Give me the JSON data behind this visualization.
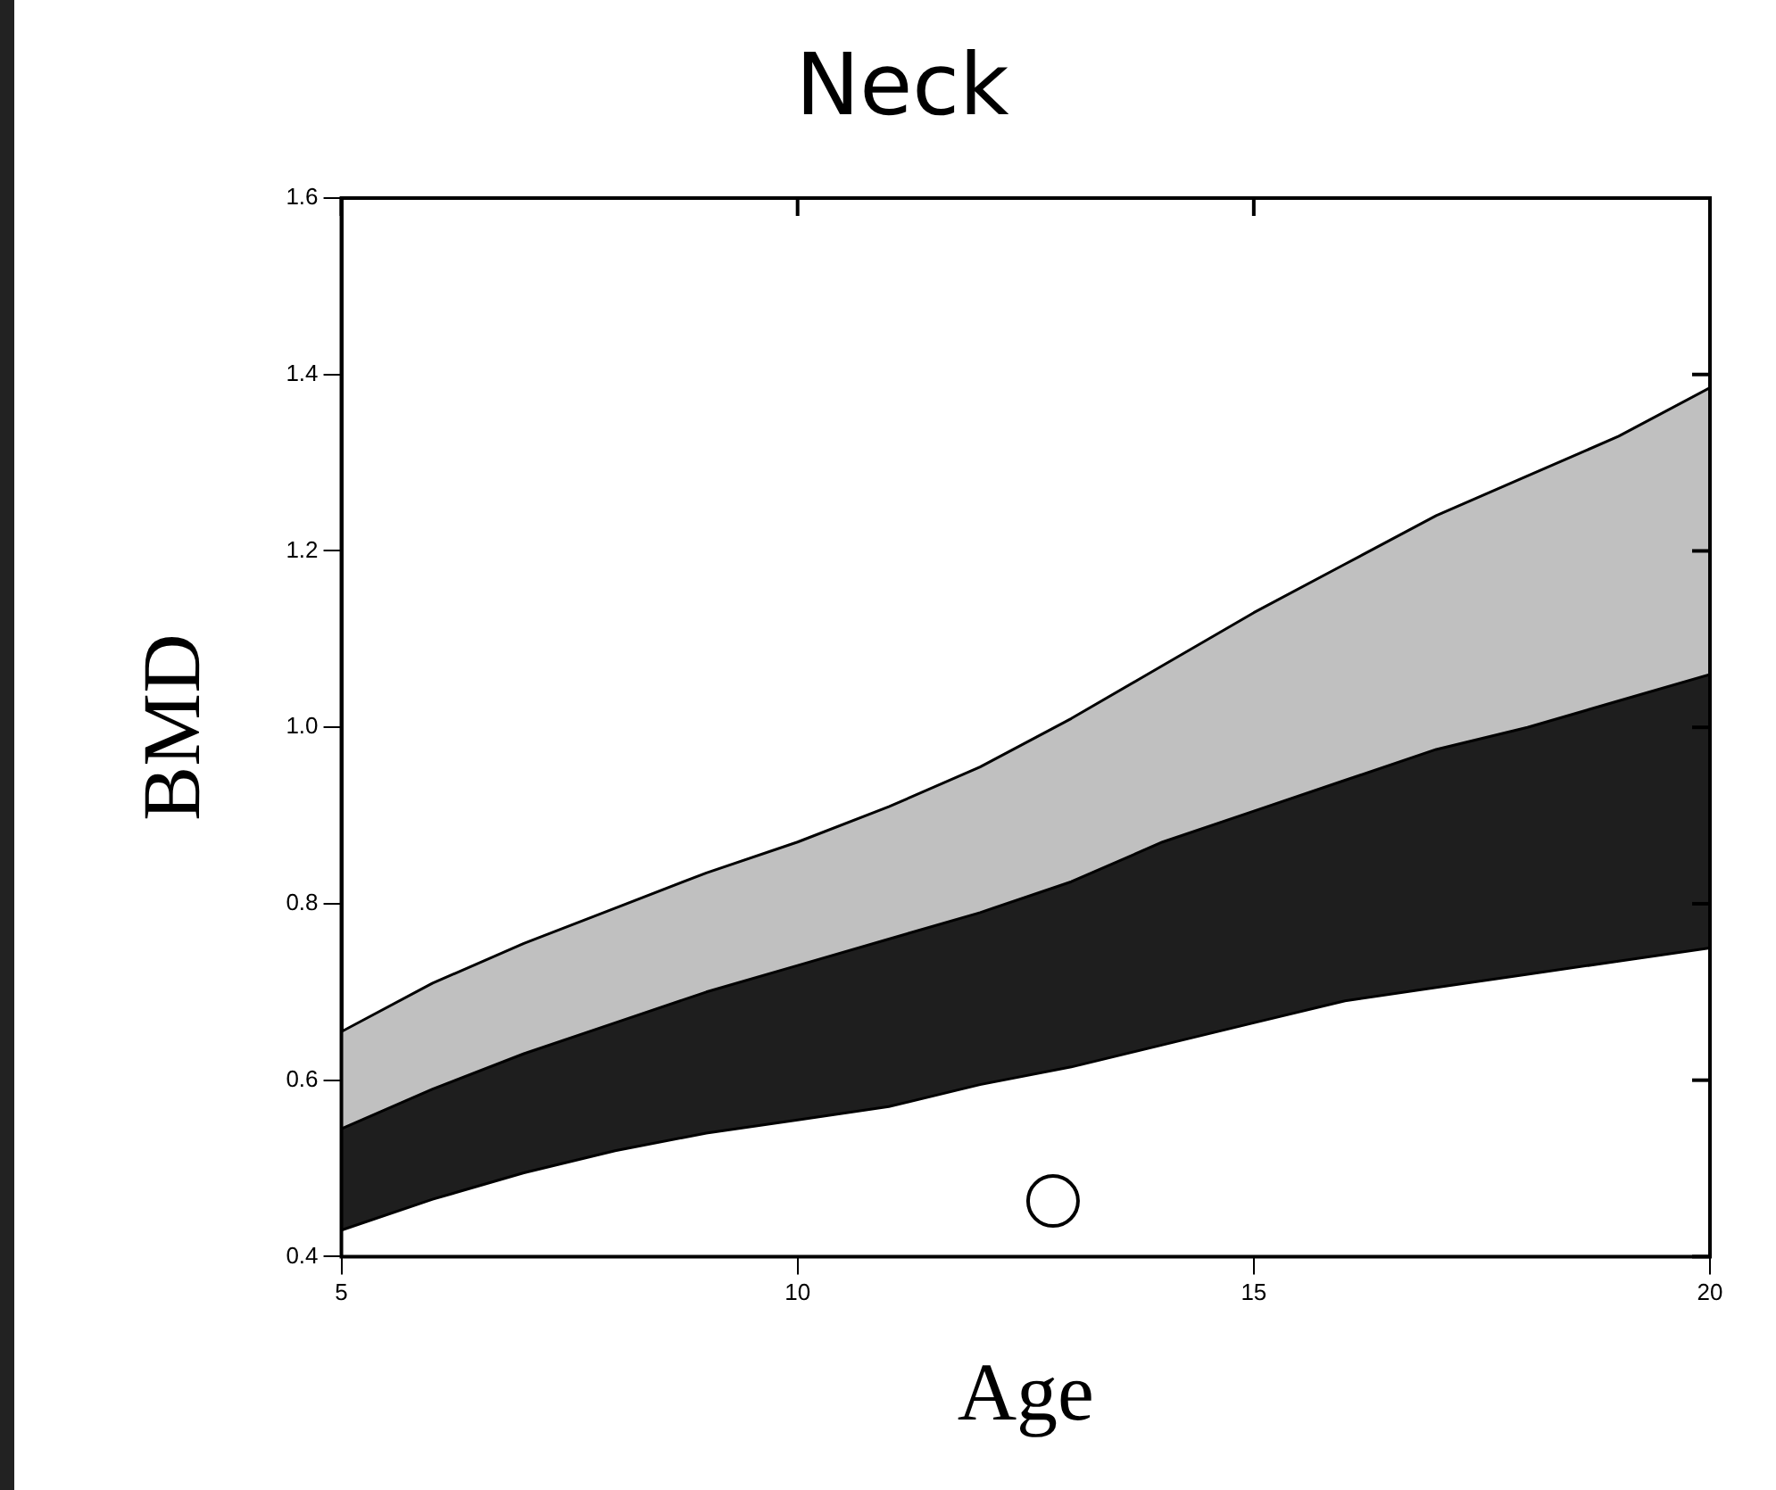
{
  "chart_data": {
    "type": "area",
    "title": "Neck",
    "xlabel": "Age",
    "ylabel": "BMD",
    "x": [
      5,
      6,
      7,
      8,
      9,
      10,
      11,
      12,
      13,
      14,
      15,
      16,
      17,
      18,
      19,
      20
    ],
    "series": [
      {
        "type": "area",
        "color": "#ffffff",
        "values": [
          0.43,
          0.465,
          0.495,
          0.52,
          0.54,
          0.555,
          0.57,
          0.595,
          0.615,
          0.64,
          0.665,
          0.69,
          0.705,
          0.72,
          0.735,
          0.75
        ]
      },
      {
        "type": "area",
        "color": "#1e1e1e",
        "values": [
          0.545,
          0.59,
          0.63,
          0.665,
          0.7,
          0.73,
          0.76,
          0.79,
          0.825,
          0.87,
          0.905,
          0.94,
          0.975,
          1.0,
          1.03,
          1.06
        ]
      },
      {
        "type": "area",
        "color": "#c0c0c0",
        "values": [
          0.655,
          0.71,
          0.755,
          0.795,
          0.835,
          0.87,
          0.91,
          0.955,
          1.01,
          1.07,
          1.13,
          1.185,
          1.24,
          1.285,
          1.33,
          1.385
        ]
      },
      {
        "type": "scatter",
        "color": "#000000",
        "x": [
          12.8
        ],
        "values": [
          0.463
        ],
        "marker": "circle"
      }
    ],
    "xlim": [
      5,
      20
    ],
    "xticks": [
      5,
      10,
      15,
      20
    ],
    "ylim": [
      0.4,
      1.6
    ],
    "yticks": [
      {
        "value": 0.4,
        "label": "0.4"
      },
      {
        "value": 0.6,
        "label": "0.6"
      },
      {
        "value": 0.8,
        "label": "0.8"
      },
      {
        "value": 1,
        "label": "1.0"
      },
      {
        "value": 1.2,
        "label": "1.2"
      },
      {
        "value": 1.4,
        "label": "1.4"
      },
      {
        "value": 1.6,
        "label": "1.6"
      }
    ],
    "grid": false,
    "legend": false
  }
}
